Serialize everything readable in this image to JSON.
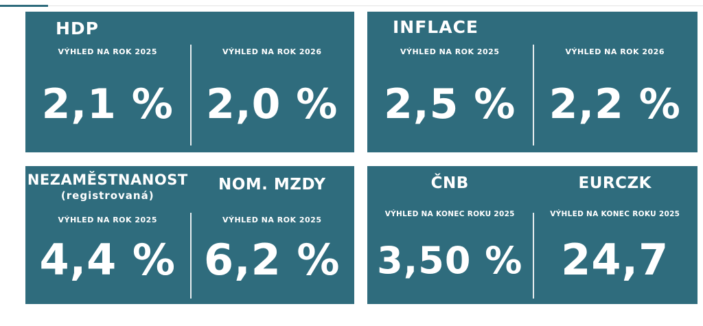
{
  "panels": [
    {
      "title": "HDP",
      "columns": [
        {
          "label": "VÝHLED NA ROK 2025",
          "value": "2,1 %"
        },
        {
          "label": "VÝHLED NA ROK 2026",
          "value": "2,0 %"
        }
      ]
    },
    {
      "title": "INFLACE",
      "columns": [
        {
          "label": "VÝHLED NA ROK 2025",
          "value": "2,5 %"
        },
        {
          "label": "VÝHLED NA ROK 2026",
          "value": "2,2 %"
        }
      ]
    },
    {
      "columns": [
        {
          "title": "NEZAMĚSTNANOST",
          "subtitle": "(registrovaná)",
          "label": "VÝHLED NA ROK 2025",
          "value": "4,4 %"
        },
        {
          "title": "NOM. MZDY",
          "label": "VÝHLED NA ROK 2025",
          "value": "6,2 %"
        }
      ]
    },
    {
      "columns": [
        {
          "title": "ČNB",
          "label": "VÝHLED NA KONEC ROKU 2025",
          "value": "3,50 %"
        },
        {
          "title": "EURCZK",
          "label": "VÝHLED NA KONEC ROKU 2025",
          "value": "24,7"
        }
      ]
    }
  ]
}
